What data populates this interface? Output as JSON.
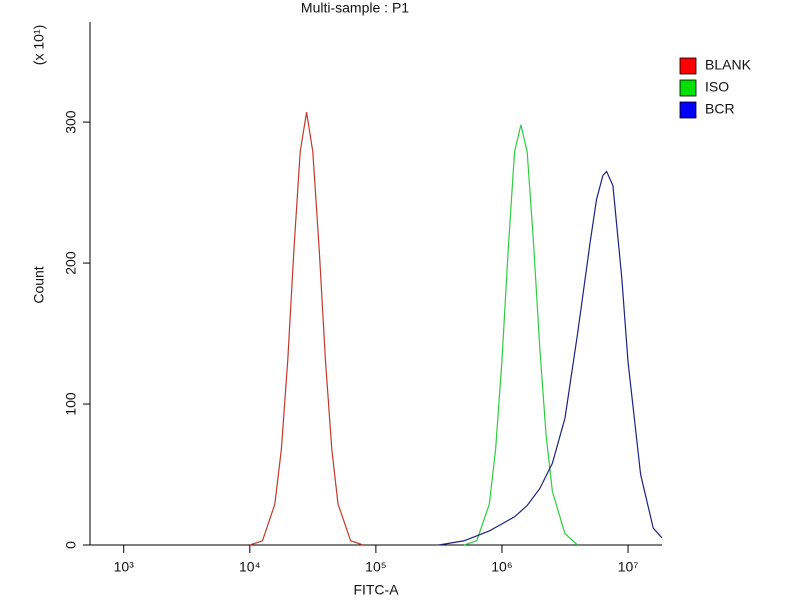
{
  "chart_data": {
    "type": "line",
    "title": "Multi-sample : P1",
    "xlabel": "FITC-A",
    "ylabel": "Count",
    "yunit": "(x 10¹)",
    "xscale": "log",
    "xlim": [
      540,
      18600000
    ],
    "ylim": [
      0,
      371
    ],
    "xticks": [
      {
        "value": 1000,
        "label": "10³"
      },
      {
        "value": 10000,
        "label": "10⁴"
      },
      {
        "value": 100000,
        "label": "10⁵"
      },
      {
        "value": 1000000,
        "label": "10⁶"
      },
      {
        "value": 10000000,
        "label": "10⁷"
      }
    ],
    "yticks": [
      0,
      100,
      200,
      300
    ],
    "series": [
      {
        "name": "BLANK",
        "color": "#c0392b",
        "x": [
          10000,
          12600,
          15800,
          17800,
          20000,
          22400,
          25100,
          28200,
          31600,
          35500,
          39800,
          44700,
          50100,
          63100,
          79400
        ],
        "values": [
          0,
          3,
          29,
          68,
          131,
          210,
          279,
          307,
          279,
          210,
          131,
          68,
          29,
          3,
          0
        ]
      },
      {
        "name": "ISO",
        "color": "#2ecc40",
        "x": [
          501000,
          631000,
          794000,
          891000,
          1000000,
          1122000,
          1259000,
          1413000,
          1585000,
          1778000,
          1995000,
          2239000,
          2512000,
          3162000,
          3981000
        ],
        "values": [
          0,
          3,
          29,
          68,
          131,
          210,
          279,
          298,
          279,
          215,
          140,
          78,
          38,
          8,
          0
        ]
      },
      {
        "name": "BCR",
        "color": "#1a237e",
        "x": [
          316000,
          501000,
          794000,
          1000000,
          1259000,
          1585000,
          1995000,
          2512000,
          3162000,
          3981000,
          5012000,
          5623000,
          6310000,
          6761000,
          7586000,
          8913000,
          10000000,
          12589000,
          15849000,
          18600000
        ],
        "values": [
          0,
          3,
          10,
          15,
          20,
          28,
          40,
          58,
          90,
          150,
          215,
          245,
          262,
          265,
          255,
          190,
          130,
          50,
          12,
          5
        ]
      }
    ],
    "legend_colors": [
      "#ff0000",
      "#00e000",
      "#0000ff"
    ]
  }
}
